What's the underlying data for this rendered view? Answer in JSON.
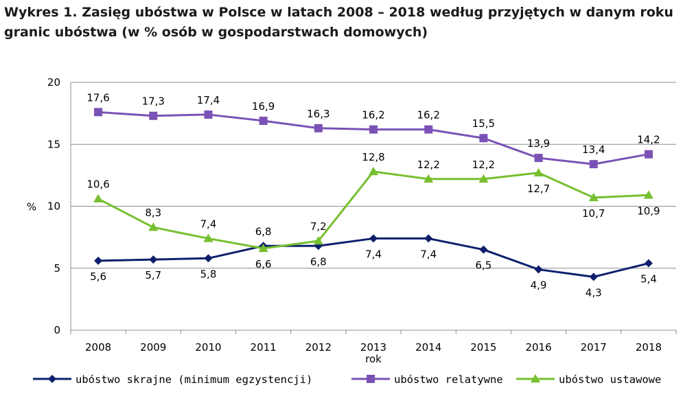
{
  "chart_data": {
    "type": "line",
    "title": "Wykres 1. Zasięg ubóstwa w Polsce w latach 2008 – 2018 według przyjętych w danym roku granic ubóstwa (w % osób w gospodarstwach domowych)",
    "xlabel": "rok",
    "ylabel": "%",
    "ylim": [
      0,
      20
    ],
    "yticks": [
      "0",
      "5",
      "10",
      "15",
      "20"
    ],
    "grid": true,
    "legend_position": "bottom",
    "categories": [
      "2008",
      "2009",
      "2010",
      "2011",
      "2012",
      "2013",
      "2014",
      "2015",
      "2016",
      "2017",
      "2018"
    ],
    "series": [
      {
        "name": "ubóstwo skrajne (minimum egzystencji)",
        "color": "#0d1f6b",
        "marker": "diamond",
        "values": [
          5.6,
          5.7,
          5.8,
          6.8,
          6.8,
          7.4,
          7.4,
          6.5,
          4.9,
          4.3,
          5.4
        ],
        "labels": [
          "5,6",
          "5,7",
          "5,8",
          "6,8",
          "6,8",
          "7,4",
          "7,4",
          "6,5",
          "4,9",
          "4,3",
          "5,4"
        ],
        "label_positions": [
          "below",
          "below",
          "below",
          "above",
          "below",
          "below",
          "below",
          "below",
          "below",
          "below",
          "below"
        ]
      },
      {
        "name": "ubóstwo relatywne",
        "color": "#7a52b6",
        "marker": "square",
        "values": [
          17.6,
          17.3,
          17.4,
          16.9,
          16.3,
          16.2,
          16.2,
          15.5,
          13.9,
          13.4,
          14.2
        ],
        "labels": [
          "17,6",
          "17,3",
          "17,4",
          "16,9",
          "16,3",
          "16,2",
          "16,2",
          "15,5",
          "13,9",
          "13,4",
          "14,2"
        ],
        "label_positions": [
          "above",
          "above",
          "above",
          "above",
          "above",
          "above",
          "above",
          "above",
          "above",
          "above",
          "above"
        ]
      },
      {
        "name": "ubóstwo ustawowe",
        "color": "#76bf2f",
        "marker": "triangle",
        "values": [
          10.6,
          8.3,
          7.4,
          6.6,
          7.2,
          12.8,
          12.2,
          12.2,
          12.7,
          10.7,
          10.9
        ],
        "labels": [
          "10,6",
          "8,3",
          "7,4",
          "6,6",
          "7,2",
          "12,8",
          "12,2",
          "12,2",
          "12,7",
          "10,7",
          "10,9"
        ],
        "label_positions": [
          "above",
          "above",
          "above",
          "below",
          "above",
          "above",
          "above",
          "above",
          "below",
          "below",
          "below"
        ]
      }
    ]
  }
}
